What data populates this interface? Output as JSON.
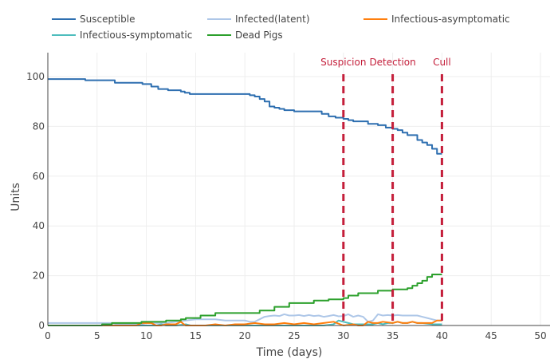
{
  "chart_data": {
    "type": "line",
    "title": "",
    "xlabel": "Time (days)",
    "ylabel": "Units",
    "xlim": [
      0,
      51
    ],
    "ylim": [
      0,
      110
    ],
    "xticks": [
      0,
      5,
      10,
      15,
      20,
      25,
      30,
      35,
      40,
      45,
      50
    ],
    "yticks": [
      0,
      20,
      40,
      60,
      80,
      100
    ],
    "grid": true,
    "legend_position": "top",
    "legend": [
      "Susceptible",
      "Infected(latent)",
      "Infectious-asymptomatic",
      "Infectious-symptomatic",
      "Dead Pigs"
    ],
    "series": [
      {
        "name": "Susceptible",
        "color": "#2e6fb0",
        "step": true,
        "x": [
          0,
          3.8,
          6.8,
          9.6,
          10.5,
          11.2,
          12.2,
          13.5,
          13.9,
          14.4,
          15,
          20.5,
          21,
          21.5,
          22,
          22.5,
          23,
          23.5,
          24,
          25,
          26,
          27.8,
          28.5,
          29.2,
          30,
          30.5,
          31,
          32.5,
          33.5,
          34.3,
          35,
          35.5,
          36,
          36.5,
          37.5,
          38,
          38.5,
          39,
          39.5,
          40
        ],
        "y": [
          99,
          98.5,
          97.5,
          97,
          96,
          95,
          94.5,
          94,
          93.5,
          93,
          93,
          92.5,
          92,
          91,
          90,
          88,
          87.5,
          87,
          86.5,
          86,
          86,
          85,
          84,
          83.5,
          83,
          82.5,
          82,
          81,
          80.5,
          79.5,
          79,
          78.5,
          77.5,
          76.5,
          74.5,
          73.5,
          72.5,
          71,
          69,
          69
        ]
      },
      {
        "name": "Infected(latent)",
        "color": "#aec7e8",
        "step": false,
        "x": [
          0,
          6.5,
          7,
          9.5,
          10,
          12,
          13,
          14,
          15,
          16,
          17,
          18,
          19,
          20,
          20.5,
          21,
          21.5,
          22,
          22.5,
          23,
          23.5,
          24,
          24.5,
          25,
          25.5,
          26,
          26.5,
          27,
          27.5,
          28,
          28.5,
          29,
          29.5,
          30,
          30.5,
          31,
          31.5,
          32,
          32.5,
          33,
          33.5,
          34,
          34.5,
          35,
          35.5,
          36,
          36.5,
          37,
          37.5,
          38,
          38.5,
          39,
          39.5,
          40
        ],
        "y": [
          1,
          1,
          0.5,
          0.5,
          1,
          1,
          1.5,
          2,
          2.5,
          2.5,
          2.5,
          2,
          2,
          2,
          1.5,
          1.5,
          2.5,
          3.5,
          3.8,
          4,
          3.8,
          4.5,
          4,
          4,
          4.2,
          3.8,
          4.2,
          3.8,
          4,
          3.5,
          3.8,
          4.2,
          3.7,
          3.8,
          4.5,
          3.5,
          4,
          3.5,
          1.5,
          2,
          4.5,
          4,
          4.2,
          4,
          4.2,
          4,
          4,
          4,
          4,
          3.5,
          3,
          2.5,
          2,
          2
        ]
      },
      {
        "name": "Infectious-asymptomatic",
        "color": "#ff7f0e",
        "step": false,
        "x": [
          0,
          9,
          9.5,
          10.5,
          11,
          11.5,
          12,
          13,
          13.5,
          13.8,
          14,
          15,
          16,
          17,
          18,
          19,
          20,
          21,
          22,
          23,
          24,
          25,
          26,
          27,
          28,
          29,
          30,
          31,
          31.5,
          32,
          32.5,
          33,
          33.5,
          34,
          35,
          35.5,
          36,
          36.5,
          37,
          37.5,
          38,
          39,
          39.5,
          40
        ],
        "y": [
          0,
          0,
          1,
          1,
          0,
          0,
          0.5,
          0.5,
          1.5,
          0.5,
          0,
          0,
          0,
          0.5,
          0,
          0.5,
          0.5,
          1,
          0.5,
          0.5,
          1,
          0.5,
          1,
          0.5,
          1,
          1.5,
          0,
          0.5,
          0,
          0,
          1.5,
          1,
          1,
          1.5,
          1,
          1.5,
          1,
          1,
          1.5,
          1,
          1,
          1,
          2,
          2
        ]
      },
      {
        "name": "Infectious-symptomatic",
        "color": "#4ebdbd",
        "step": false,
        "x": [
          0,
          11,
          11.5,
          12,
          13,
          14,
          14.5,
          15,
          16,
          17,
          18,
          19,
          20,
          21,
          22,
          23,
          24,
          25,
          26,
          27,
          28,
          29,
          29.5,
          30,
          30.5,
          31,
          32,
          33,
          33.5,
          34,
          34.5,
          35,
          35.5,
          36,
          36.5,
          37,
          37.5,
          38,
          39,
          40
        ],
        "y": [
          0,
          0,
          0.5,
          0,
          0,
          0.5,
          0,
          0,
          0,
          0,
          0,
          0,
          0,
          0,
          0,
          0,
          0,
          0,
          0,
          0,
          0,
          0.5,
          2,
          1.5,
          1,
          0.5,
          0.5,
          0.5,
          1,
          0.5,
          1,
          1,
          1.5,
          1,
          1,
          1.5,
          1,
          1,
          0.5,
          0.5
        ]
      },
      {
        "name": "Dead Pigs",
        "color": "#2ca02c",
        "step": true,
        "x": [
          0,
          5.5,
          6.5,
          9.5,
          12,
          13.5,
          14,
          15.5,
          17,
          21.5,
          23,
          24.5,
          27,
          28.5,
          30,
          30.5,
          31.5,
          33.5,
          35,
          36.5,
          37,
          37.5,
          38,
          38.5,
          39,
          39.5,
          40
        ],
        "y": [
          0,
          0.5,
          1,
          1.5,
          2,
          2.5,
          3,
          4,
          5,
          6,
          7.5,
          9,
          10,
          10.5,
          11,
          12,
          13,
          14,
          14.5,
          15,
          16,
          17,
          18,
          19.5,
          20.5,
          20.5,
          20.5
        ]
      }
    ],
    "annotations": [
      {
        "label": "Suspicion",
        "x": 30,
        "style": "dashed",
        "color": "#c41e3a"
      },
      {
        "label": "Detection",
        "x": 35,
        "style": "dashed",
        "color": "#c41e3a"
      },
      {
        "label": "Cull",
        "x": 40,
        "style": "dashed",
        "color": "#c41e3a"
      }
    ]
  }
}
